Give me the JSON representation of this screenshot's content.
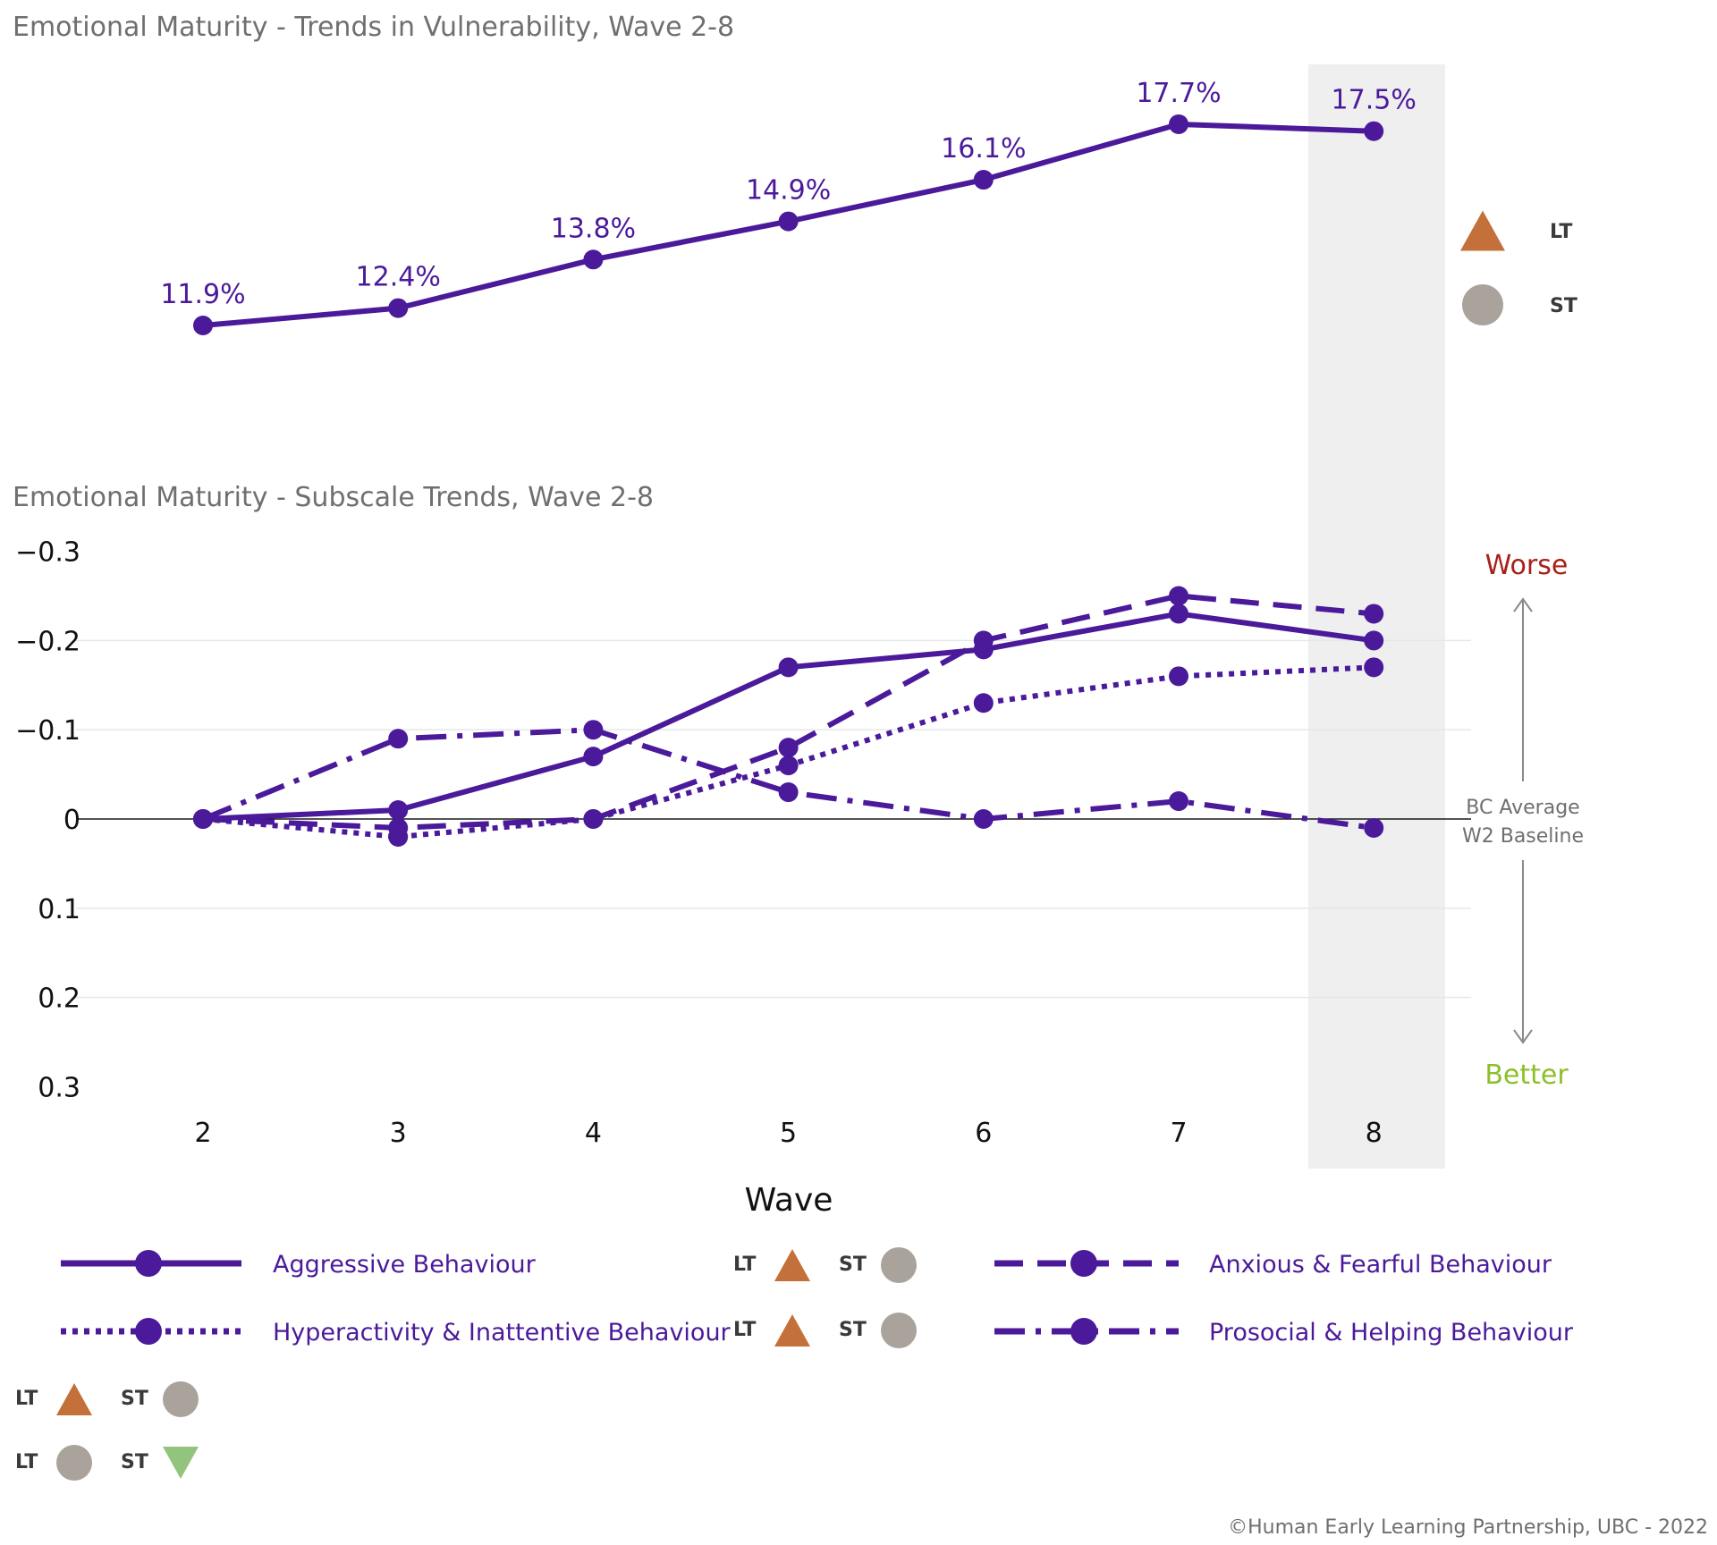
{
  "colors": {
    "series": "#4b1a9a",
    "lt_marker": "#c4703a",
    "st_marker": "#a9a39b",
    "st_down_marker": "#93c47d",
    "worse": "#a8201a",
    "better": "#8cbf2c",
    "highlight_band": "#efefef",
    "gridline": "#e6e6e6"
  },
  "chart_data": [
    {
      "type": "line",
      "title": "Emotional Maturity - Trends in Vulnerability, Wave 2-8",
      "x": [
        2,
        3,
        4,
        5,
        6,
        7,
        8
      ],
      "series": [
        {
          "values": [
            11.9,
            12.4,
            13.8,
            14.9,
            16.1,
            17.7,
            17.5
          ],
          "labels": [
            "11.9%",
            "12.4%",
            "13.8%",
            "14.9%",
            "16.1%",
            "17.7%",
            "17.5%"
          ]
        }
      ],
      "highlight_x": 8,
      "legend": [
        {
          "label": "LT",
          "marker": "triangle-up",
          "color": "#c4703a"
        },
        {
          "label": "ST",
          "marker": "circle",
          "color": "#a9a39b"
        }
      ]
    },
    {
      "type": "line",
      "title": "Emotional Maturity - Subscale Trends, Wave 2-8",
      "xlabel": "Wave",
      "x": [
        2,
        3,
        4,
        5,
        6,
        7,
        8
      ],
      "x_tick_labels": [
        "2",
        "3",
        "4",
        "5",
        "6",
        "7",
        "8"
      ],
      "y_reversed": true,
      "ylim": [
        -0.3,
        0.3
      ],
      "y_ticks": [
        -0.3,
        -0.2,
        -0.1,
        0,
        0.1,
        0.2,
        0.3
      ],
      "y_tick_labels": [
        "−0.3",
        "−0.2",
        "−0.1",
        "0",
        "0.1",
        "0.2",
        "0.3"
      ],
      "grid": true,
      "highlight_x": 8,
      "series": [
        {
          "name": "Aggressive Behaviour",
          "dash": "solid",
          "values": [
            0,
            -0.01,
            -0.07,
            -0.17,
            -0.19,
            -0.23,
            -0.2
          ],
          "lt": "triangle-up",
          "st": "circle"
        },
        {
          "name": "Anxious & Fearful Behaviour",
          "dash": "dashed",
          "values": [
            0,
            0.01,
            0,
            -0.08,
            -0.2,
            -0.25,
            -0.23
          ],
          "lt": "triangle-up",
          "st": "circle"
        },
        {
          "name": "Hyperactivity & Inattentive Behaviour",
          "dash": "dotted",
          "values": [
            0,
            0.02,
            0,
            -0.06,
            -0.13,
            -0.16,
            -0.17
          ],
          "lt": "triangle-up",
          "st": "circle"
        },
        {
          "name": "Prosocial & Helping Behaviour",
          "dash": "dashdot",
          "values": [
            0,
            -0.09,
            -0.1,
            -0.03,
            0,
            -0.02,
            0.01
          ],
          "lt": "circle",
          "st": "triangle-down"
        }
      ],
      "annotations": {
        "worse": "Worse",
        "better": "Better",
        "baseline_line1": "BC Average",
        "baseline_line2": "W2 Baseline"
      }
    }
  ],
  "legend_ltst_labels": {
    "lt": "LT",
    "st": "ST"
  },
  "footer": "©Human Early Learning Partnership, UBC - 2022"
}
